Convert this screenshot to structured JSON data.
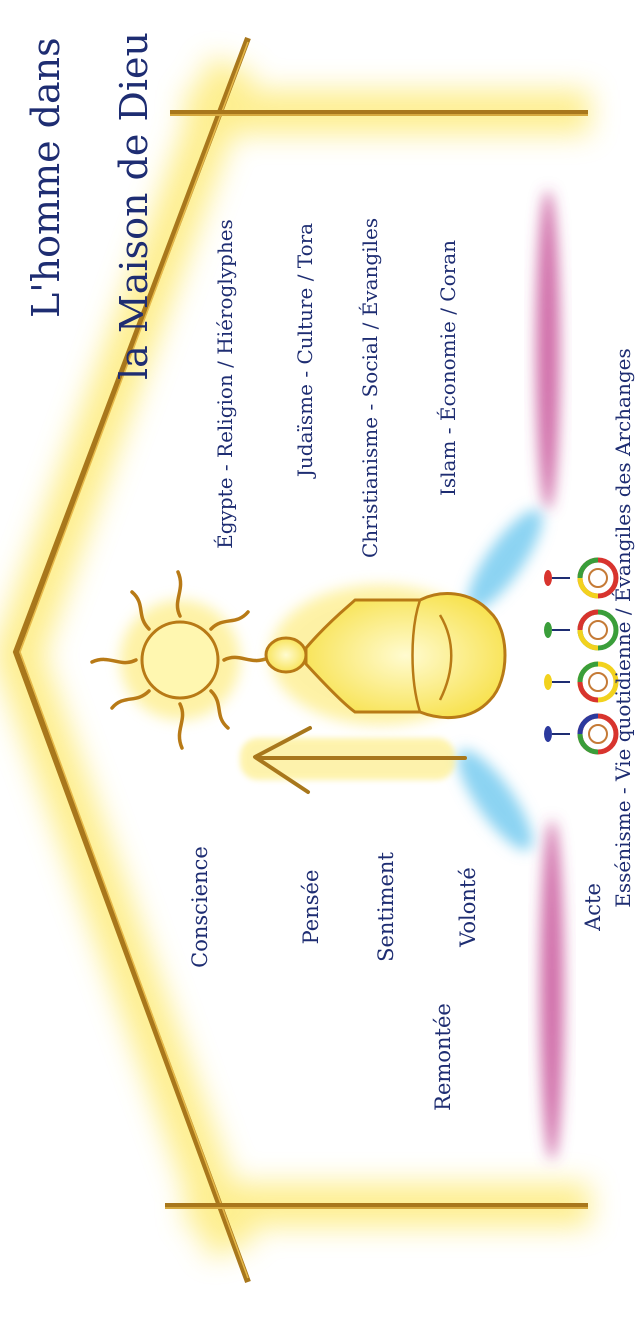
{
  "title": {
    "line1": "L'homme dans",
    "line2": "la Maison de Dieu"
  },
  "levels": {
    "remontee": "Remontée",
    "conscience": "Conscience",
    "pensee": "Pensée",
    "sentiment": "Sentiment",
    "volonte": "Volonté",
    "acte": "Acte"
  },
  "traditions": {
    "egypte": "Égypte - Religion / Hiéroglyphes",
    "judaisme": "Judaïsme - Culture / Tora",
    "christianisme": "Christianisme - Social / Évangiles",
    "islam": "Islam - Économie / Coran",
    "essenisme": "Essénisme - Vie quotidienne / Évangiles des Archanges"
  },
  "colors": {
    "frame": "#a8771c",
    "glow": "#fde96b",
    "text": "#1e2d72",
    "magenta": "#c2408f",
    "blue_glow": "#6ec8ef",
    "sun": "#f0c52a"
  }
}
